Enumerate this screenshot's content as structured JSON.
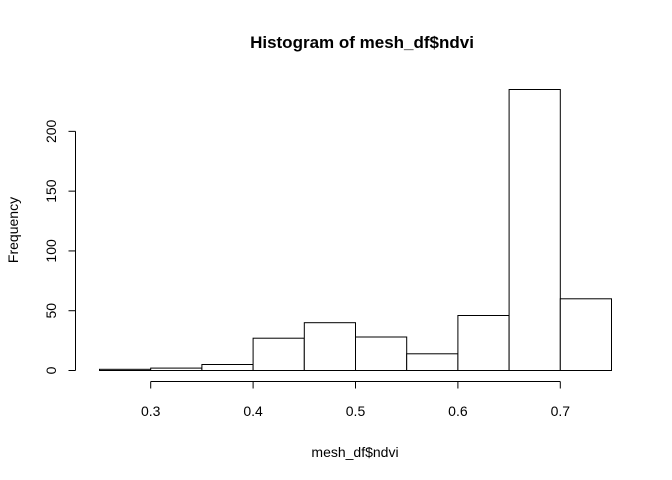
{
  "chart_data": {
    "type": "bar",
    "title": "Histogram of mesh_df$ndvi",
    "xlabel": "mesh_df$ndvi",
    "ylabel": "Frequency",
    "bin_edges": [
      0.25,
      0.3,
      0.35,
      0.4,
      0.45,
      0.5,
      0.55,
      0.6,
      0.65,
      0.7,
      0.75
    ],
    "values": [
      1,
      2,
      5,
      27,
      40,
      28,
      14,
      46,
      235,
      60
    ],
    "x_ticks": [
      0.3,
      0.4,
      0.5,
      0.6,
      0.7
    ],
    "x_tick_labels": [
      "0.3",
      "0.4",
      "0.5",
      "0.6",
      "0.7"
    ],
    "y_ticks": [
      0,
      50,
      100,
      150,
      200
    ],
    "y_tick_labels": [
      "0",
      "50",
      "100",
      "150",
      "200"
    ],
    "xlim": [
      0.25,
      0.75
    ],
    "ylim": [
      0,
      235
    ],
    "grid": false,
    "bar_fill": "#ffffff",
    "bar_stroke": "#000000"
  }
}
